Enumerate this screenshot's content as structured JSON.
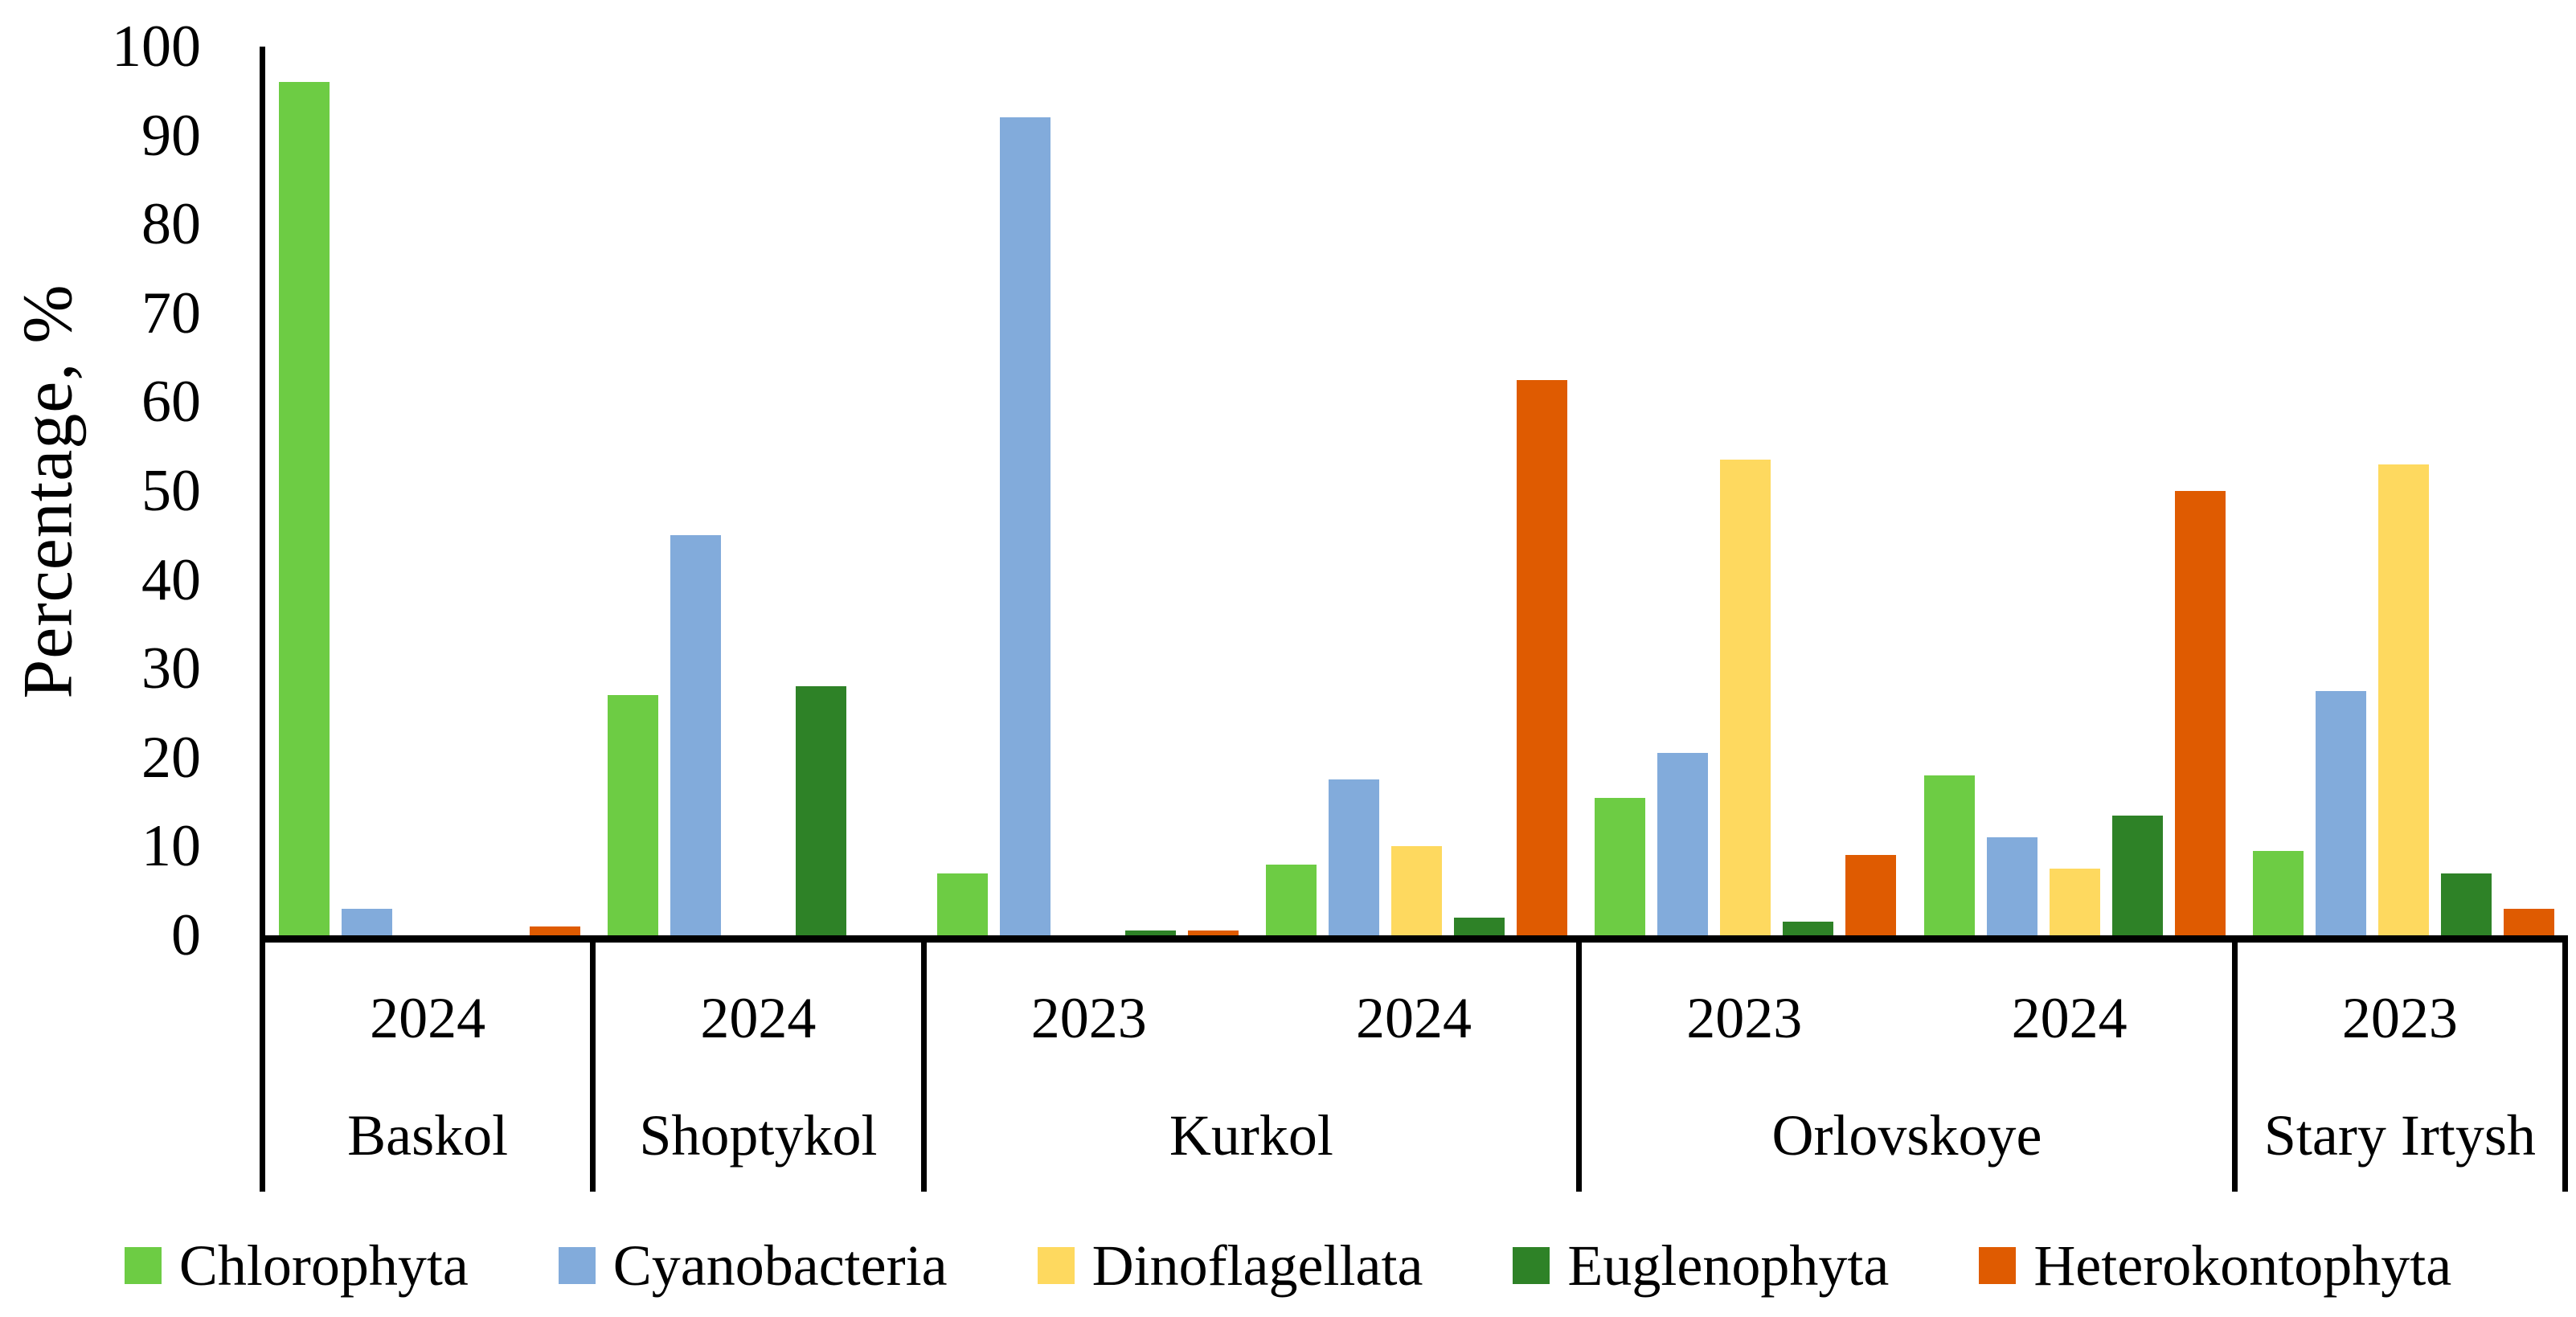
{
  "chart_data": {
    "type": "bar",
    "ylabel": "Percentage, %",
    "ylim": [
      0,
      100
    ],
    "y_ticks": [
      0,
      10,
      20,
      30,
      40,
      50,
      60,
      70,
      80,
      90,
      100
    ],
    "grid": false,
    "legend_position": "bottom",
    "categories": [
      {
        "lake": "Baskol",
        "year": "2024"
      },
      {
        "lake": "Shoptykol",
        "year": "2024"
      },
      {
        "lake": "Kurkol",
        "year": "2023"
      },
      {
        "lake": "Kurkol",
        "year": "2024"
      },
      {
        "lake": "Orlovskoye",
        "year": "2023"
      },
      {
        "lake": "Orlovskoye",
        "year": "2024"
      },
      {
        "lake": "Stary Irtysh",
        "year": "2023"
      }
    ],
    "sections": [
      {
        "lake": "Baskol",
        "years": [
          "2024"
        ]
      },
      {
        "lake": "Shoptykol",
        "years": [
          "2024"
        ]
      },
      {
        "lake": "Kurkol",
        "years": [
          "2023",
          "2024"
        ]
      },
      {
        "lake": "Orlovskoye",
        "years": [
          "2023",
          "2024"
        ]
      },
      {
        "lake": "Stary Irtysh",
        "years": [
          "2023"
        ]
      }
    ],
    "series": [
      {
        "name": "Chlorophyta",
        "color": "#6DCC44",
        "values": [
          96,
          27,
          7,
          8,
          15.5,
          18,
          9.5
        ]
      },
      {
        "name": "Cyanobacteria",
        "color": "#82ABDB",
        "values": [
          3,
          45,
          92,
          17.5,
          20.5,
          11,
          27.5
        ]
      },
      {
        "name": "Dinoflagellata",
        "color": "#FED95F",
        "values": [
          0,
          0,
          0,
          10,
          53.5,
          7.5,
          53
        ]
      },
      {
        "name": "Euglenophyta",
        "color": "#2E8227",
        "values": [
          0,
          28,
          0.5,
          2,
          1.5,
          13.5,
          7
        ]
      },
      {
        "name": "Heterokontophyta",
        "color": "#DF5B01",
        "values": [
          1,
          0,
          0.5,
          62.5,
          9,
          50,
          3
        ]
      }
    ]
  },
  "legend": {
    "items": [
      {
        "label": "Chlorophyta",
        "color": "#6DCC44"
      },
      {
        "label": "Cyanobacteria",
        "color": "#82ABDB"
      },
      {
        "label": "Dinoflagellata",
        "color": "#FED95F"
      },
      {
        "label": "Euglenophyta",
        "color": "#2E8227"
      },
      {
        "label": "Heterokontophyta",
        "color": "#DF5B01"
      }
    ]
  }
}
